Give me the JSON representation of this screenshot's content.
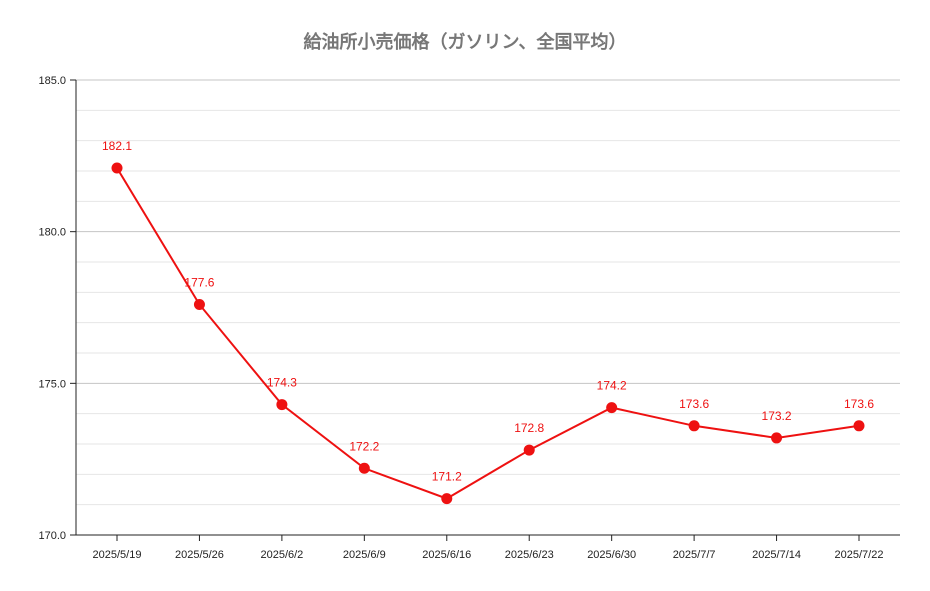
{
  "chart_data": {
    "type": "line",
    "title": "給油所小売価格（ガソリン、全国平均）",
    "xlabel": "",
    "ylabel": "",
    "categories": [
      "2025/5/19",
      "2025/5/26",
      "2025/6/2",
      "2025/6/9",
      "2025/6/16",
      "2025/6/23",
      "2025/6/30",
      "2025/7/7",
      "2025/7/14",
      "2025/7/22"
    ],
    "series": [
      {
        "values": [
          182.1,
          177.6,
          174.3,
          172.2,
          171.2,
          172.8,
          174.2,
          173.6,
          173.2,
          173.6
        ],
        "color": "#ee1111"
      }
    ],
    "data_labels": [
      "182.1",
      "177.6",
      "174.3",
      "172.2",
      "171.2",
      "172.8",
      "174.2",
      "173.6",
      "173.2",
      "173.6"
    ],
    "ylim": [
      170.0,
      185.0
    ],
    "yticks": [
      "170.0",
      "175.0",
      "180.0",
      "185.0"
    ],
    "grid": true,
    "legend": "none"
  }
}
